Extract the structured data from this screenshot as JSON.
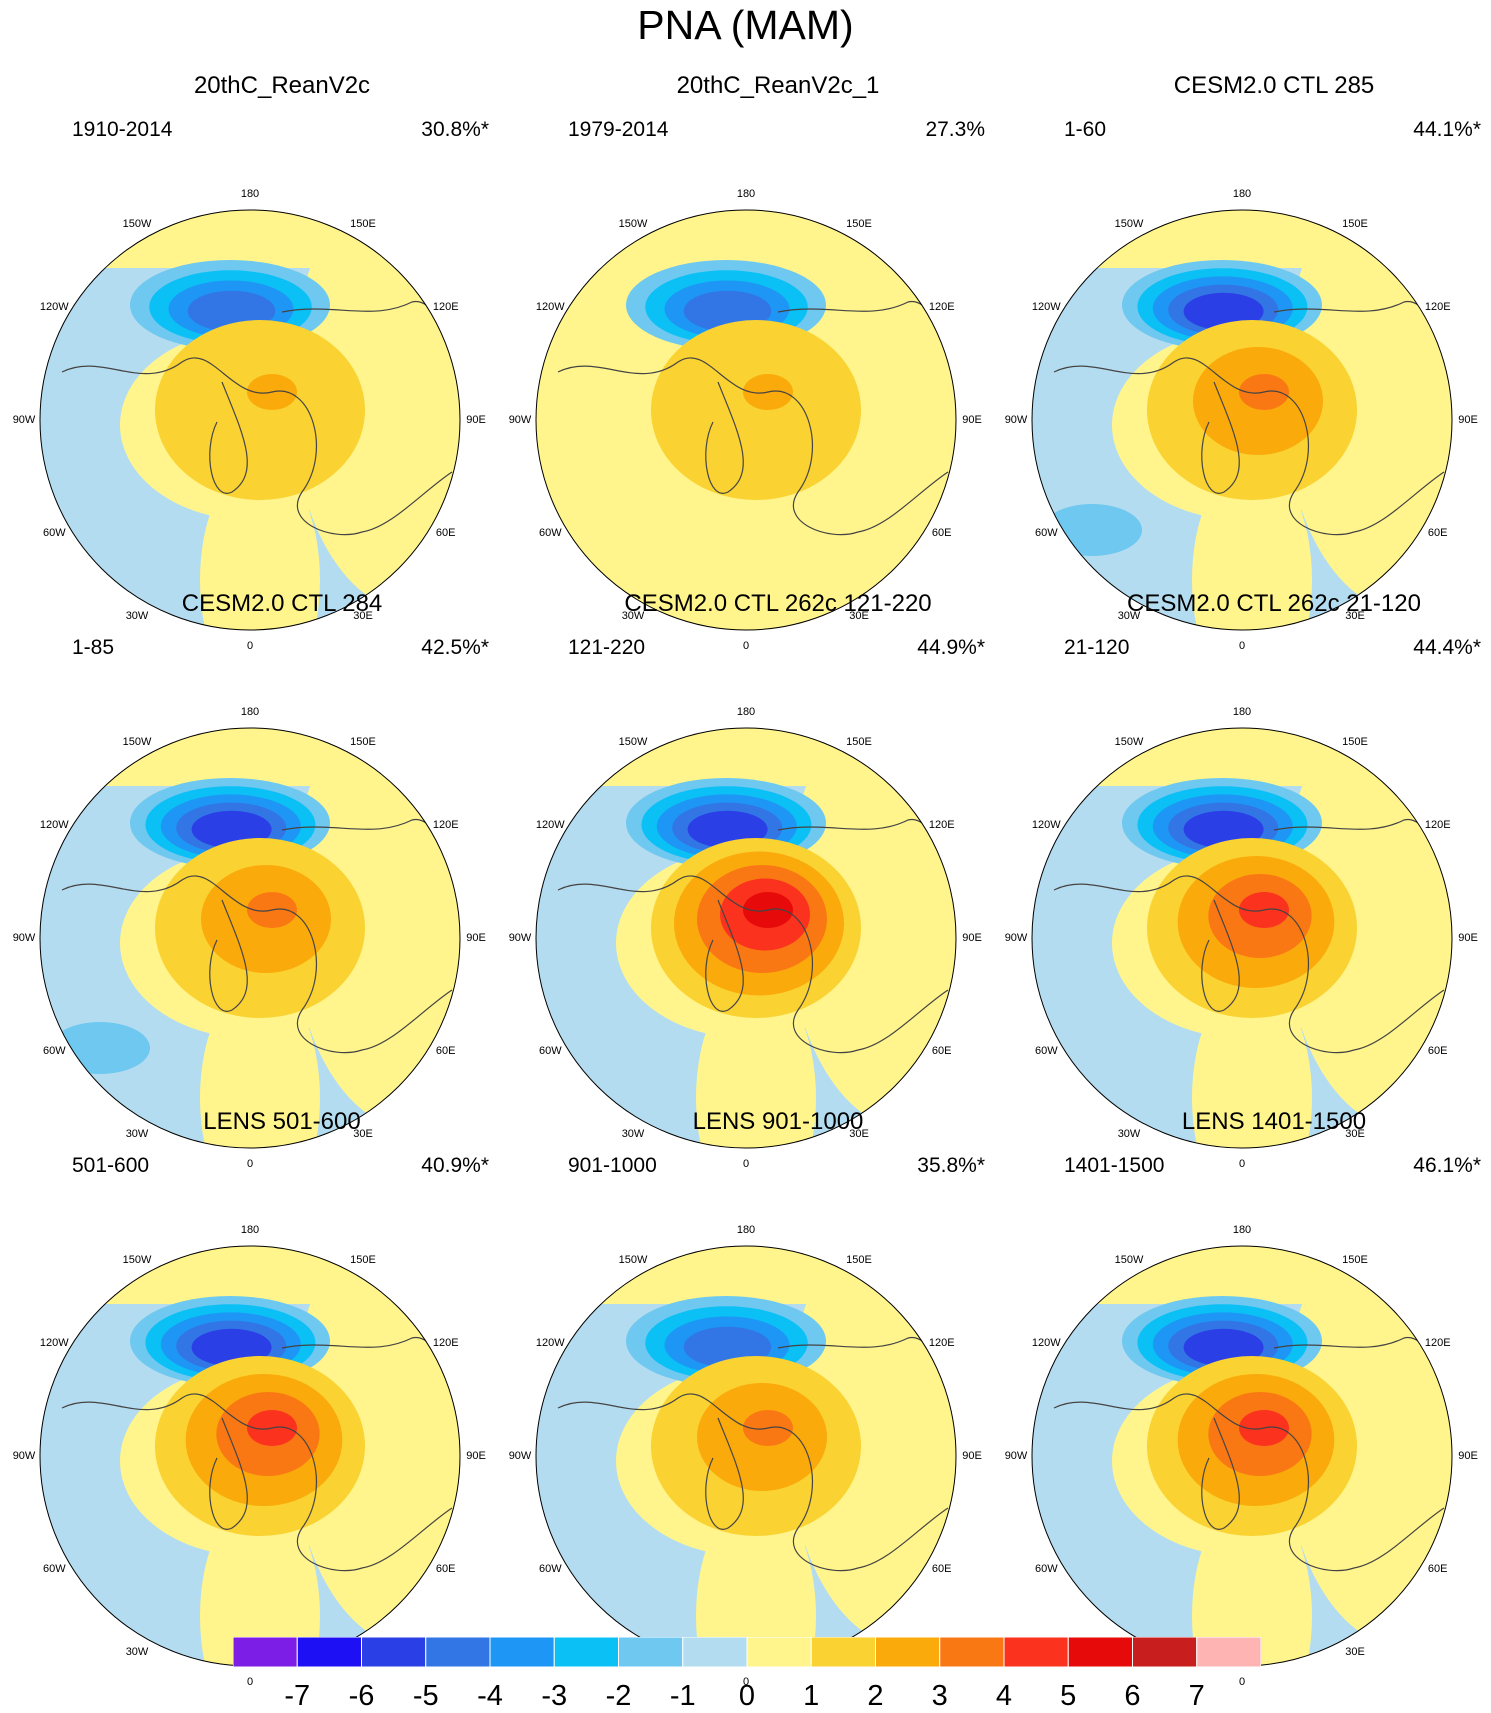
{
  "figure_title": "PNA (MAM)",
  "chart_data": {
    "type": "polar-stereographic contour maps (3x3 panels)",
    "title": "PNA (MAM)",
    "longitude_labels": [
      "180",
      "150E",
      "120E",
      "90E",
      "60E",
      "30E",
      "0",
      "30W",
      "60W",
      "90W",
      "120W",
      "150W"
    ],
    "panels": [
      {
        "title": "20thC_ReanV2c",
        "period": "1910-2014",
        "variance_explained": "30.8%*",
        "min_value": -4,
        "max_value": 2
      },
      {
        "title": "20thC_ReanV2c_1",
        "period": "1979-2014",
        "variance_explained": "27.3%",
        "min_value": -4,
        "max_value": 2
      },
      {
        "title": "CESM2.0 CTL 285",
        "period": "1-60",
        "variance_explained": "44.1%*",
        "min_value": -5,
        "max_value": 3
      },
      {
        "title": "CESM2.0 CTL 284",
        "period": "1-85",
        "variance_explained": "42.5%*",
        "min_value": -5,
        "max_value": 3
      },
      {
        "title": "CESM2.0 CTL 262c 121-220",
        "period": "121-220",
        "variance_explained": "44.9%*",
        "min_value": -5,
        "max_value": 5
      },
      {
        "title": "CESM2.0 CTL 262c 21-120",
        "period": "21-120",
        "variance_explained": "44.4%*",
        "min_value": -5,
        "max_value": 4
      },
      {
        "title": "LENS 501-600",
        "period": "501-600",
        "variance_explained": "40.9%*",
        "min_value": -5,
        "max_value": 4
      },
      {
        "title": "LENS 901-1000",
        "period": "901-1000",
        "variance_explained": "35.8%*",
        "min_value": -4,
        "max_value": 3
      },
      {
        "title": "LENS 1401-1500",
        "period": "1401-1500",
        "variance_explained": "46.1%*",
        "min_value": -5,
        "max_value": 4
      }
    ],
    "colorbar": {
      "levels": [
        "-7",
        "-6",
        "-5",
        "-4",
        "-3",
        "-2",
        "-1",
        "0",
        "1",
        "2",
        "3",
        "4",
        "5",
        "6",
        "7"
      ],
      "colors": [
        "#7d1ee6",
        "#1e10f5",
        "#2a3fe6",
        "#3276e6",
        "#1e96f5",
        "#0ac0f5",
        "#6ec8f0",
        "#b4dcf0",
        "#fff58c",
        "#fad232",
        "#faaa0a",
        "#fa7814",
        "#fa321e",
        "#e60a0a",
        "#c81e1e",
        "#ffb4b4"
      ]
    }
  }
}
